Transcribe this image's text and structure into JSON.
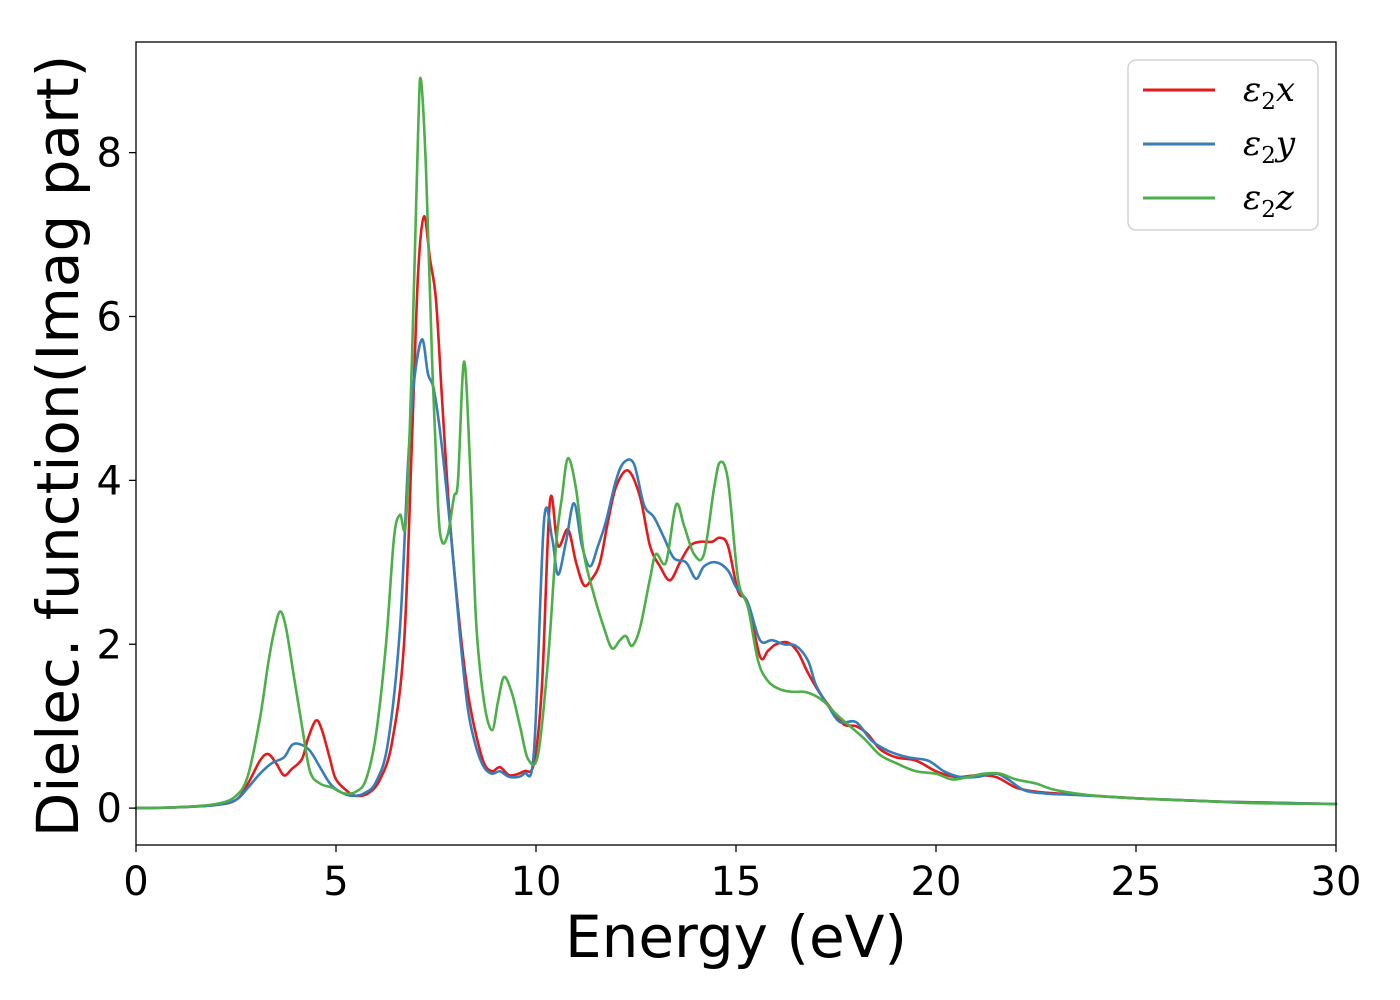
{
  "chart_data": {
    "type": "line",
    "xlabel": "Energy (eV)",
    "ylabel": "Dielec. function(Imag part)",
    "xlim": [
      0,
      30
    ],
    "ylim": [
      -0.45,
      9.35
    ],
    "xticks": [
      "0",
      "5",
      "10",
      "15",
      "20",
      "25",
      "30"
    ],
    "yticks": [
      "0",
      "2",
      "4",
      "6",
      "8"
    ],
    "grid": false,
    "legend_position": "top-right",
    "series": [
      {
        "name": "ε2x",
        "legend_symbol": "ε",
        "legend_sub": "2",
        "legend_suffix": "x",
        "color": "#e41a1c",
        "points": [
          [
            0,
            0.0
          ],
          [
            1.0,
            0.01
          ],
          [
            2.0,
            0.04
          ],
          [
            2.5,
            0.1
          ],
          [
            2.8,
            0.3
          ],
          [
            3.1,
            0.58
          ],
          [
            3.3,
            0.66
          ],
          [
            3.5,
            0.55
          ],
          [
            3.7,
            0.4
          ],
          [
            3.9,
            0.48
          ],
          [
            4.15,
            0.6
          ],
          [
            4.3,
            0.85
          ],
          [
            4.5,
            1.07
          ],
          [
            4.65,
            0.95
          ],
          [
            4.85,
            0.6
          ],
          [
            5.0,
            0.35
          ],
          [
            5.3,
            0.2
          ],
          [
            5.5,
            0.15
          ],
          [
            5.8,
            0.18
          ],
          [
            6.1,
            0.35
          ],
          [
            6.4,
            0.8
          ],
          [
            6.7,
            2.0
          ],
          [
            6.9,
            4.5
          ],
          [
            7.05,
            6.5
          ],
          [
            7.2,
            7.22
          ],
          [
            7.35,
            6.7
          ],
          [
            7.5,
            6.2
          ],
          [
            7.65,
            5.0
          ],
          [
            7.85,
            3.5
          ],
          [
            8.1,
            2.2
          ],
          [
            8.3,
            1.4
          ],
          [
            8.5,
            0.9
          ],
          [
            8.7,
            0.55
          ],
          [
            8.9,
            0.45
          ],
          [
            9.1,
            0.5
          ],
          [
            9.35,
            0.4
          ],
          [
            9.7,
            0.45
          ],
          [
            9.95,
            0.55
          ],
          [
            10.15,
            1.5
          ],
          [
            10.35,
            3.75
          ],
          [
            10.55,
            3.2
          ],
          [
            10.8,
            3.4
          ],
          [
            11.0,
            3.0
          ],
          [
            11.2,
            2.72
          ],
          [
            11.4,
            2.8
          ],
          [
            11.6,
            3.0
          ],
          [
            11.8,
            3.5
          ],
          [
            12.0,
            3.92
          ],
          [
            12.3,
            4.12
          ],
          [
            12.6,
            3.8
          ],
          [
            12.85,
            3.2
          ],
          [
            13.1,
            2.95
          ],
          [
            13.35,
            2.78
          ],
          [
            13.6,
            3.0
          ],
          [
            13.85,
            3.2
          ],
          [
            14.1,
            3.25
          ],
          [
            14.4,
            3.25
          ],
          [
            14.6,
            3.3
          ],
          [
            14.8,
            3.2
          ],
          [
            15.05,
            2.65
          ],
          [
            15.3,
            2.5
          ],
          [
            15.6,
            1.85
          ],
          [
            15.8,
            1.92
          ],
          [
            16.0,
            2.0
          ],
          [
            16.3,
            2.02
          ],
          [
            16.55,
            1.9
          ],
          [
            16.8,
            1.65
          ],
          [
            17.1,
            1.4
          ],
          [
            17.4,
            1.2
          ],
          [
            17.7,
            1.02
          ],
          [
            18.0,
            1.0
          ],
          [
            18.3,
            0.9
          ],
          [
            18.6,
            0.72
          ],
          [
            19.0,
            0.62
          ],
          [
            19.5,
            0.58
          ],
          [
            20.0,
            0.45
          ],
          [
            20.5,
            0.38
          ],
          [
            21.0,
            0.4
          ],
          [
            21.5,
            0.38
          ],
          [
            22.0,
            0.25
          ],
          [
            22.5,
            0.2
          ],
          [
            23.0,
            0.18
          ],
          [
            24.0,
            0.15
          ],
          [
            25.0,
            0.12
          ],
          [
            26.0,
            0.1
          ],
          [
            27.0,
            0.08
          ],
          [
            28.0,
            0.07
          ],
          [
            30.0,
            0.05
          ]
        ]
      },
      {
        "name": "ε2y",
        "legend_symbol": "ε",
        "legend_sub": "2",
        "legend_suffix": "y",
        "color": "#377eb8",
        "points": [
          [
            0,
            0.0
          ],
          [
            1.0,
            0.01
          ],
          [
            2.0,
            0.04
          ],
          [
            2.5,
            0.1
          ],
          [
            2.8,
            0.25
          ],
          [
            3.1,
            0.42
          ],
          [
            3.4,
            0.55
          ],
          [
            3.7,
            0.62
          ],
          [
            3.9,
            0.77
          ],
          [
            4.1,
            0.78
          ],
          [
            4.35,
            0.7
          ],
          [
            4.6,
            0.5
          ],
          [
            4.85,
            0.3
          ],
          [
            5.1,
            0.2
          ],
          [
            5.4,
            0.15
          ],
          [
            5.7,
            0.18
          ],
          [
            6.0,
            0.32
          ],
          [
            6.3,
            0.8
          ],
          [
            6.6,
            2.2
          ],
          [
            6.8,
            4.2
          ],
          [
            6.95,
            5.2
          ],
          [
            7.15,
            5.72
          ],
          [
            7.3,
            5.3
          ],
          [
            7.45,
            5.1
          ],
          [
            7.65,
            4.4
          ],
          [
            7.9,
            3.2
          ],
          [
            8.1,
            2.1
          ],
          [
            8.3,
            1.2
          ],
          [
            8.5,
            0.75
          ],
          [
            8.7,
            0.5
          ],
          [
            8.9,
            0.42
          ],
          [
            9.1,
            0.45
          ],
          [
            9.35,
            0.38
          ],
          [
            9.7,
            0.42
          ],
          [
            9.95,
            0.7
          ],
          [
            10.2,
            3.5
          ],
          [
            10.4,
            3.3
          ],
          [
            10.55,
            2.85
          ],
          [
            10.75,
            3.25
          ],
          [
            10.95,
            3.72
          ],
          [
            11.15,
            3.2
          ],
          [
            11.35,
            2.95
          ],
          [
            11.55,
            3.2
          ],
          [
            11.75,
            3.5
          ],
          [
            12.0,
            4.0
          ],
          [
            12.2,
            4.22
          ],
          [
            12.45,
            4.2
          ],
          [
            12.7,
            3.7
          ],
          [
            12.95,
            3.55
          ],
          [
            13.2,
            3.3
          ],
          [
            13.45,
            3.05
          ],
          [
            13.75,
            3.0
          ],
          [
            14.0,
            2.8
          ],
          [
            14.2,
            2.95
          ],
          [
            14.5,
            3.0
          ],
          [
            14.8,
            2.9
          ],
          [
            15.0,
            2.7
          ],
          [
            15.3,
            2.5
          ],
          [
            15.6,
            2.05
          ],
          [
            15.9,
            2.05
          ],
          [
            16.2,
            2.0
          ],
          [
            16.5,
            1.98
          ],
          [
            16.8,
            1.8
          ],
          [
            17.0,
            1.5
          ],
          [
            17.3,
            1.25
          ],
          [
            17.6,
            1.05
          ],
          [
            18.0,
            1.05
          ],
          [
            18.4,
            0.82
          ],
          [
            18.8,
            0.7
          ],
          [
            19.3,
            0.62
          ],
          [
            19.8,
            0.58
          ],
          [
            20.2,
            0.45
          ],
          [
            20.6,
            0.38
          ],
          [
            21.0,
            0.38
          ],
          [
            21.5,
            0.42
          ],
          [
            21.8,
            0.35
          ],
          [
            22.2,
            0.22
          ],
          [
            22.7,
            0.18
          ],
          [
            23.5,
            0.16
          ],
          [
            25.0,
            0.12
          ],
          [
            26.0,
            0.1
          ],
          [
            27.0,
            0.08
          ],
          [
            28.0,
            0.07
          ],
          [
            30.0,
            0.05
          ]
        ]
      },
      {
        "name": "ε2z",
        "legend_symbol": "ε",
        "legend_sub": "2",
        "legend_suffix": "z",
        "color": "#4daf4a",
        "points": [
          [
            0,
            0.0
          ],
          [
            1.0,
            0.01
          ],
          [
            2.0,
            0.05
          ],
          [
            2.5,
            0.15
          ],
          [
            2.8,
            0.4
          ],
          [
            3.1,
            1.1
          ],
          [
            3.3,
            1.75
          ],
          [
            3.45,
            2.15
          ],
          [
            3.6,
            2.4
          ],
          [
            3.75,
            2.2
          ],
          [
            3.95,
            1.6
          ],
          [
            4.15,
            1.0
          ],
          [
            4.35,
            0.45
          ],
          [
            4.6,
            0.3
          ],
          [
            4.9,
            0.25
          ],
          [
            5.2,
            0.18
          ],
          [
            5.5,
            0.2
          ],
          [
            5.75,
            0.35
          ],
          [
            6.0,
            0.9
          ],
          [
            6.25,
            2.0
          ],
          [
            6.45,
            3.3
          ],
          [
            6.6,
            3.58
          ],
          [
            6.75,
            3.5
          ],
          [
            6.9,
            5.5
          ],
          [
            7.05,
            8.2
          ],
          [
            7.12,
            8.9
          ],
          [
            7.25,
            7.8
          ],
          [
            7.4,
            5.5
          ],
          [
            7.55,
            3.7
          ],
          [
            7.65,
            3.25
          ],
          [
            7.8,
            3.35
          ],
          [
            7.95,
            3.8
          ],
          [
            8.05,
            4.0
          ],
          [
            8.2,
            5.45
          ],
          [
            8.35,
            4.2
          ],
          [
            8.5,
            2.3
          ],
          [
            8.7,
            1.3
          ],
          [
            8.9,
            0.95
          ],
          [
            9.05,
            1.3
          ],
          [
            9.2,
            1.6
          ],
          [
            9.4,
            1.4
          ],
          [
            9.6,
            1.0
          ],
          [
            9.8,
            0.6
          ],
          [
            10.05,
            0.65
          ],
          [
            10.3,
            1.8
          ],
          [
            10.5,
            3.2
          ],
          [
            10.65,
            3.8
          ],
          [
            10.8,
            4.27
          ],
          [
            11.0,
            3.9
          ],
          [
            11.2,
            3.1
          ],
          [
            11.45,
            2.6
          ],
          [
            11.7,
            2.2
          ],
          [
            11.9,
            1.95
          ],
          [
            12.1,
            2.05
          ],
          [
            12.25,
            2.1
          ],
          [
            12.4,
            1.98
          ],
          [
            12.6,
            2.2
          ],
          [
            12.85,
            2.8
          ],
          [
            13.0,
            3.1
          ],
          [
            13.25,
            3.0
          ],
          [
            13.5,
            3.7
          ],
          [
            13.7,
            3.45
          ],
          [
            13.95,
            3.1
          ],
          [
            14.2,
            3.1
          ],
          [
            14.45,
            3.9
          ],
          [
            14.6,
            4.22
          ],
          [
            14.8,
            4.0
          ],
          [
            15.05,
            2.8
          ],
          [
            15.3,
            2.45
          ],
          [
            15.55,
            1.8
          ],
          [
            15.8,
            1.55
          ],
          [
            16.1,
            1.45
          ],
          [
            16.4,
            1.42
          ],
          [
            16.7,
            1.42
          ],
          [
            16.95,
            1.38
          ],
          [
            17.2,
            1.3
          ],
          [
            17.5,
            1.15
          ],
          [
            17.8,
            1.02
          ],
          [
            18.2,
            0.85
          ],
          [
            18.6,
            0.65
          ],
          [
            19.0,
            0.55
          ],
          [
            19.5,
            0.45
          ],
          [
            20.0,
            0.42
          ],
          [
            20.4,
            0.35
          ],
          [
            20.8,
            0.38
          ],
          [
            21.2,
            0.42
          ],
          [
            21.6,
            0.42
          ],
          [
            22.0,
            0.35
          ],
          [
            22.5,
            0.3
          ],
          [
            23.0,
            0.22
          ],
          [
            24.0,
            0.15
          ],
          [
            25.0,
            0.12
          ],
          [
            26.0,
            0.1
          ],
          [
            27.0,
            0.08
          ],
          [
            28.0,
            0.06
          ],
          [
            30.0,
            0.05
          ]
        ]
      }
    ]
  }
}
